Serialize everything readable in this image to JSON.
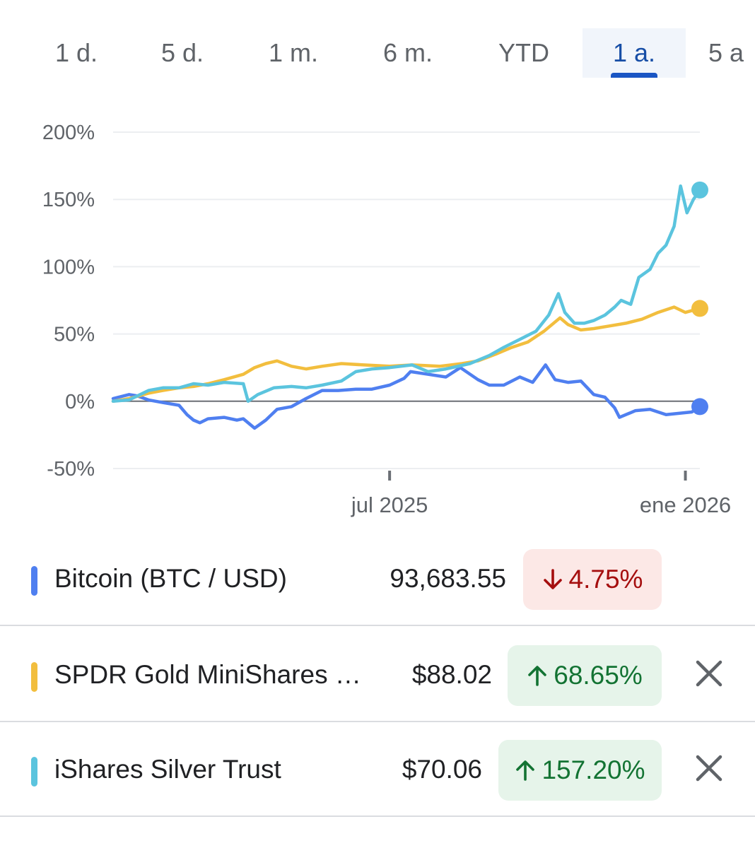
{
  "tabs": [
    {
      "label": "1 d.",
      "active": false
    },
    {
      "label": "5 d.",
      "active": false
    },
    {
      "label": "1 m.",
      "active": false
    },
    {
      "label": "6 m.",
      "active": false
    },
    {
      "label": "YTD",
      "active": false
    },
    {
      "label": "1 a.",
      "active": true
    },
    {
      "label": "5 a",
      "active": false
    }
  ],
  "colors": {
    "bitcoin": "#4f7ff0",
    "gold": "#f2be3e",
    "silver": "#5bc4de",
    "axis": "#5f6368",
    "grid": "#eceef1",
    "down": "#a50e0e",
    "up": "#137333"
  },
  "chart_data": {
    "type": "line",
    "ylim": [
      -50,
      200
    ],
    "ytick_labels": [
      "200%",
      "150%",
      "100%",
      "50%",
      "0%",
      "-50%"
    ],
    "yticks": [
      200,
      150,
      100,
      50,
      0,
      -50
    ],
    "xlim": [
      "2025-01-10",
      "2026-01-10"
    ],
    "xtick_labels": [
      "jul 2025",
      "ene 2026"
    ],
    "xticks": [
      "2025-07-01",
      "2026-01-01"
    ],
    "grid": true,
    "series": [
      {
        "name": "Bitcoin (BTC / USD)",
        "color": "#4f7ff0",
        "points": [
          [
            "2025-01-10",
            2
          ],
          [
            "2025-01-20",
            5
          ],
          [
            "2025-01-25",
            4
          ],
          [
            "2025-02-01",
            1
          ],
          [
            "2025-02-10",
            -1
          ],
          [
            "2025-02-20",
            -3
          ],
          [
            "2025-02-25",
            -10
          ],
          [
            "2025-03-01",
            -14
          ],
          [
            "2025-03-05",
            -16
          ],
          [
            "2025-03-10",
            -13
          ],
          [
            "2025-03-20",
            -12
          ],
          [
            "2025-03-28",
            -14
          ],
          [
            "2025-04-01",
            -13
          ],
          [
            "2025-04-08",
            -20
          ],
          [
            "2025-04-15",
            -14
          ],
          [
            "2025-04-22",
            -6
          ],
          [
            "2025-05-01",
            -4
          ],
          [
            "2025-05-10",
            2
          ],
          [
            "2025-05-20",
            8
          ],
          [
            "2025-05-30",
            8
          ],
          [
            "2025-06-10",
            9
          ],
          [
            "2025-06-20",
            9
          ],
          [
            "2025-07-01",
            12
          ],
          [
            "2025-07-10",
            17
          ],
          [
            "2025-07-14",
            22
          ],
          [
            "2025-07-25",
            20
          ],
          [
            "2025-08-05",
            18
          ],
          [
            "2025-08-14",
            25
          ],
          [
            "2025-08-25",
            16
          ],
          [
            "2025-09-01",
            12
          ],
          [
            "2025-09-10",
            12
          ],
          [
            "2025-09-20",
            18
          ],
          [
            "2025-09-28",
            14
          ],
          [
            "2025-10-06",
            27
          ],
          [
            "2025-10-12",
            16
          ],
          [
            "2025-10-20",
            14
          ],
          [
            "2025-10-28",
            15
          ],
          [
            "2025-11-05",
            5
          ],
          [
            "2025-11-12",
            3
          ],
          [
            "2025-11-18",
            -5
          ],
          [
            "2025-11-21",
            -12
          ],
          [
            "2025-12-01",
            -7
          ],
          [
            "2025-12-10",
            -6
          ],
          [
            "2025-12-20",
            -10
          ],
          [
            "2025-12-28",
            -9
          ],
          [
            "2026-01-05",
            -8
          ],
          [
            "2026-01-10",
            -4
          ]
        ]
      },
      {
        "name": "SPDR Gold MiniShares …",
        "color": "#f2be3e",
        "points": [
          [
            "2025-01-10",
            0
          ],
          [
            "2025-01-20",
            2
          ],
          [
            "2025-02-01",
            6
          ],
          [
            "2025-02-10",
            8
          ],
          [
            "2025-02-20",
            10
          ],
          [
            "2025-03-01",
            11
          ],
          [
            "2025-03-10",
            13
          ],
          [
            "2025-03-20",
            16
          ],
          [
            "2025-04-01",
            20
          ],
          [
            "2025-04-08",
            25
          ],
          [
            "2025-04-15",
            28
          ],
          [
            "2025-04-22",
            30
          ],
          [
            "2025-05-01",
            26
          ],
          [
            "2025-05-10",
            24
          ],
          [
            "2025-05-20",
            26
          ],
          [
            "2025-06-01",
            28
          ],
          [
            "2025-06-15",
            27
          ],
          [
            "2025-07-01",
            26
          ],
          [
            "2025-07-15",
            27
          ],
          [
            "2025-08-01",
            26
          ],
          [
            "2025-08-15",
            28
          ],
          [
            "2025-08-25",
            30
          ],
          [
            "2025-09-05",
            35
          ],
          [
            "2025-09-15",
            40
          ],
          [
            "2025-09-25",
            44
          ],
          [
            "2025-10-05",
            52
          ],
          [
            "2025-10-15",
            62
          ],
          [
            "2025-10-20",
            57
          ],
          [
            "2025-10-28",
            53
          ],
          [
            "2025-11-05",
            54
          ],
          [
            "2025-11-15",
            56
          ],
          [
            "2025-11-25",
            58
          ],
          [
            "2025-12-05",
            61
          ],
          [
            "2025-12-15",
            66
          ],
          [
            "2025-12-25",
            70
          ],
          [
            "2026-01-01",
            66
          ],
          [
            "2026-01-10",
            69
          ]
        ]
      },
      {
        "name": "iShares Silver Trust",
        "color": "#5bc4de",
        "points": [
          [
            "2025-01-10",
            0
          ],
          [
            "2025-01-20",
            1
          ],
          [
            "2025-02-01",
            8
          ],
          [
            "2025-02-10",
            10
          ],
          [
            "2025-02-20",
            10
          ],
          [
            "2025-03-01",
            13
          ],
          [
            "2025-03-10",
            12
          ],
          [
            "2025-03-20",
            14
          ],
          [
            "2025-04-01",
            13
          ],
          [
            "2025-04-04",
            0
          ],
          [
            "2025-04-10",
            5
          ],
          [
            "2025-04-20",
            10
          ],
          [
            "2025-05-01",
            11
          ],
          [
            "2025-05-10",
            10
          ],
          [
            "2025-05-20",
            12
          ],
          [
            "2025-06-01",
            15
          ],
          [
            "2025-06-10",
            22
          ],
          [
            "2025-06-20",
            24
          ],
          [
            "2025-07-01",
            25
          ],
          [
            "2025-07-15",
            27
          ],
          [
            "2025-07-25",
            22
          ],
          [
            "2025-08-05",
            24
          ],
          [
            "2025-08-20",
            28
          ],
          [
            "2025-09-01",
            34
          ],
          [
            "2025-09-10",
            40
          ],
          [
            "2025-09-20",
            46
          ],
          [
            "2025-09-30",
            52
          ],
          [
            "2025-10-08",
            64
          ],
          [
            "2025-10-14",
            80
          ],
          [
            "2025-10-18",
            66
          ],
          [
            "2025-10-24",
            58
          ],
          [
            "2025-10-30",
            58
          ],
          [
            "2025-11-05",
            60
          ],
          [
            "2025-11-12",
            64
          ],
          [
            "2025-11-18",
            70
          ],
          [
            "2025-11-22",
            75
          ],
          [
            "2025-11-28",
            72
          ],
          [
            "2025-12-03",
            92
          ],
          [
            "2025-12-10",
            98
          ],
          [
            "2025-12-15",
            110
          ],
          [
            "2025-12-20",
            116
          ],
          [
            "2025-12-25",
            130
          ],
          [
            "2025-12-29",
            160
          ],
          [
            "2026-01-02",
            140
          ],
          [
            "2026-01-06",
            150
          ],
          [
            "2026-01-10",
            157
          ]
        ]
      }
    ]
  },
  "legend": [
    {
      "name": "Bitcoin (BTC / USD)",
      "price": "93,683.55",
      "change": "4.75%",
      "direction": "down",
      "color": "#4f7ff0",
      "removable": false
    },
    {
      "name": "SPDR Gold MiniShares …",
      "price": "$88.02",
      "change": "68.65%",
      "direction": "up",
      "color": "#f2be3e",
      "removable": true
    },
    {
      "name": "iShares Silver Trust",
      "price": "$70.06",
      "change": "157.20%",
      "direction": "up",
      "color": "#5bc4de",
      "removable": true
    }
  ]
}
